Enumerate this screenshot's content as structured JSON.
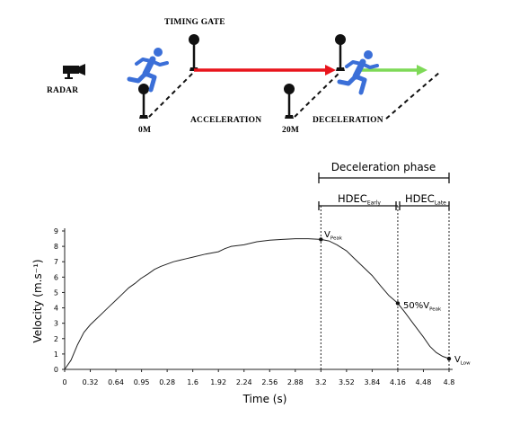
{
  "scene": {
    "radar_label": "RADAR",
    "timing_gate_label": "TIMING GATE",
    "label_0m": "0M",
    "label_20m": "20M",
    "acceleration_label": "ACCELERATION",
    "deceleration_label": "DECELERATION",
    "accel_arrow_color": "#e8141c",
    "decel_arrow_color": "#7ed957",
    "runner_color": "#3b6fd8",
    "icons": [
      "radar-camera-icon",
      "runner-icon",
      "timing-gate-icon"
    ]
  },
  "phases": {
    "deceleration_phase": "Deceleration phase",
    "hdec_early_main": "HDEC",
    "hdec_early_sub": "Early",
    "hdec_late_main": "HDEC",
    "hdec_late_sub": "Late"
  },
  "annotations": {
    "v_peak_main": "V",
    "v_peak_sub": "Peak",
    "half_peak_prefix": "50%V",
    "half_peak_sub": "Peak",
    "v_low_main": "V",
    "v_low_sub": "Low"
  },
  "chart_data": {
    "type": "line",
    "xlabel": "Time (s)",
    "ylabel": "Velocity (m.s⁻¹)",
    "x_tick_labels": [
      "0",
      "0.32",
      "0.64",
      "0.95",
      "0.28",
      "1.6",
      "1.92",
      "2.24",
      "2.56",
      "2.88",
      "3.2",
      "3.52",
      "3.84",
      "4.16",
      "4.48",
      "4.8"
    ],
    "y_ticks": [
      0,
      1,
      2,
      3,
      4,
      5,
      6,
      7,
      8,
      9
    ],
    "xlim": [
      0,
      4.8
    ],
    "ylim": [
      0,
      9
    ],
    "series": [
      {
        "x": [
          0,
          0.08,
          0.16,
          0.24,
          0.32,
          0.4,
          0.48,
          0.56,
          0.64,
          0.72,
          0.8,
          0.88,
          0.95,
          1.04,
          1.12,
          1.2,
          1.28,
          1.36,
          1.44,
          1.52,
          1.6,
          1.76,
          1.92,
          2.0,
          2.08,
          2.24,
          2.4,
          2.56,
          2.72,
          2.88,
          3.04,
          3.2,
          3.3,
          3.4,
          3.52,
          3.6,
          3.7,
          3.84,
          3.95,
          4.05,
          4.16,
          4.25,
          4.35,
          4.48,
          4.56,
          4.64,
          4.72,
          4.8
        ],
        "y": [
          0,
          0.6,
          1.6,
          2.4,
          2.9,
          3.3,
          3.7,
          4.1,
          4.5,
          4.9,
          5.3,
          5.6,
          5.9,
          6.2,
          6.5,
          6.7,
          6.85,
          7.0,
          7.1,
          7.2,
          7.3,
          7.5,
          7.65,
          7.85,
          8.0,
          8.1,
          8.3,
          8.4,
          8.45,
          8.5,
          8.5,
          8.45,
          8.35,
          8.1,
          7.7,
          7.3,
          6.8,
          6.1,
          5.4,
          4.8,
          4.3,
          3.7,
          3.0,
          2.1,
          1.5,
          1.1,
          0.85,
          0.7
        ]
      }
    ],
    "markers": [
      {
        "label": "V_Peak",
        "x": 3.2,
        "y": 8.45
      },
      {
        "label": "50%V_Peak",
        "x": 4.16,
        "y": 4.3
      },
      {
        "label": "V_Low",
        "x": 4.8,
        "y": 0.7
      }
    ],
    "vertical_dotted_lines_at": [
      3.2,
      4.16,
      4.8
    ],
    "grid": false
  }
}
